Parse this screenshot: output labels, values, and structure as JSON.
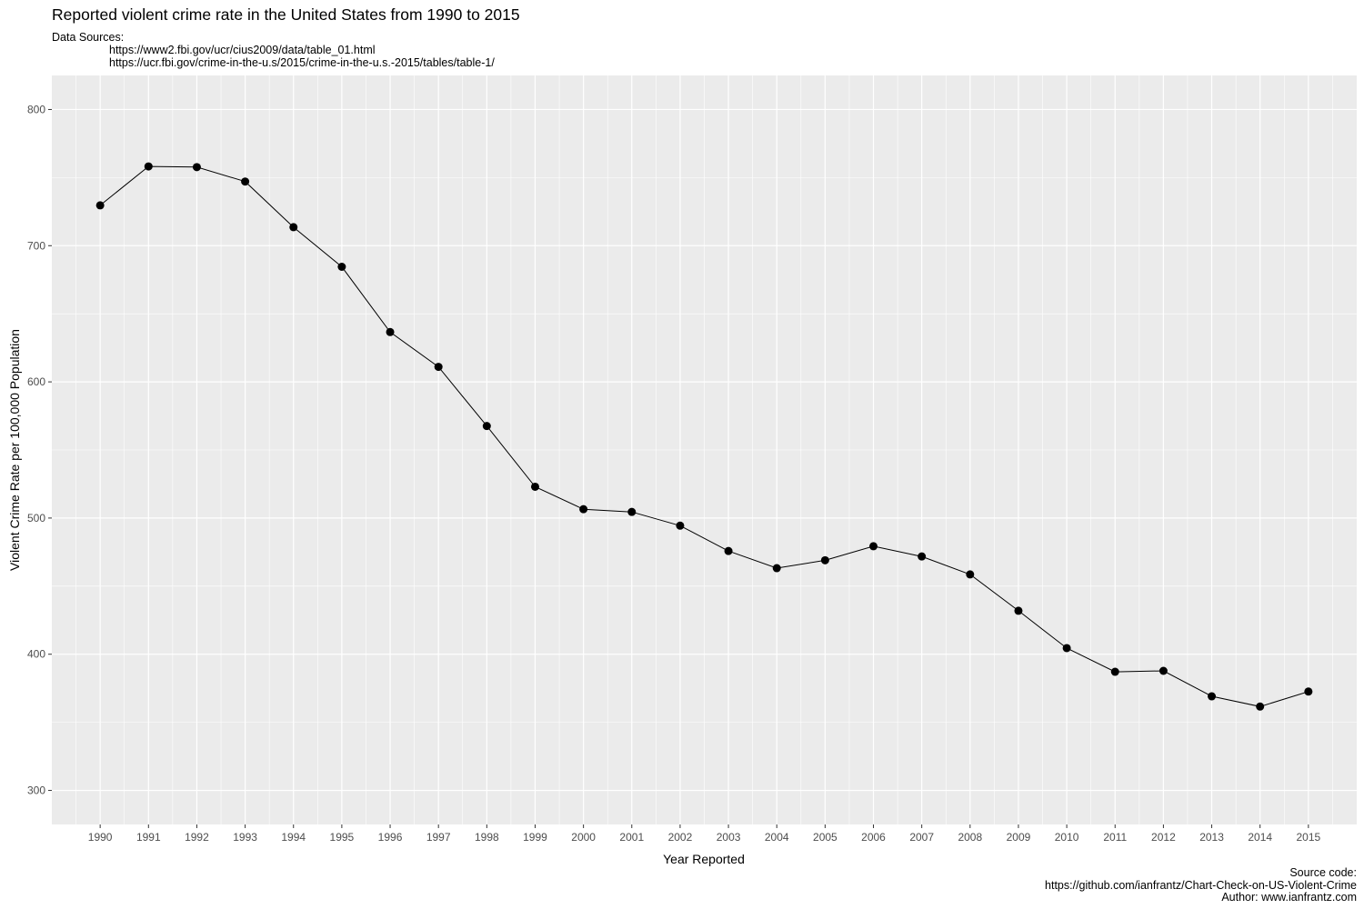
{
  "title": "Reported violent crime rate in the United States from 1990 to 2015",
  "subtitle": {
    "label": "Data Sources:",
    "sources": [
      "https://www2.fbi.gov/ucr/cius2009/data/table_01.html",
      "https://ucr.fbi.gov/crime-in-the-u.s/2015/crime-in-the-u.s.-2015/tables/table-1/"
    ]
  },
  "caption": {
    "line1": "Source code:",
    "line2": "https://github.com/ianfrantz/Chart-Check-on-US-Violent-Crime",
    "line3": "Author: www.ianfrantz.com"
  },
  "colors": {
    "panel": "#ebebeb",
    "grid": "#ffffff",
    "line": "#000000",
    "point": "#000000",
    "tick_text": "#4d4d4d"
  },
  "chart_data": {
    "type": "line",
    "title": "Reported violent crime rate in the United States from 1990 to 2015",
    "xlabel": "Year Reported",
    "ylabel": "Violent Crime Rate per 100,000 Population",
    "x": [
      1990,
      1991,
      1992,
      1993,
      1994,
      1995,
      1996,
      1997,
      1998,
      1999,
      2000,
      2001,
      2002,
      2003,
      2004,
      2005,
      2006,
      2007,
      2008,
      2009,
      2010,
      2011,
      2012,
      2013,
      2014,
      2015
    ],
    "y": [
      729.6,
      758.2,
      757.7,
      747.1,
      713.6,
      684.5,
      636.6,
      611.0,
      567.6,
      523.0,
      506.5,
      504.5,
      494.4,
      475.8,
      463.2,
      469.0,
      479.3,
      471.8,
      458.6,
      431.9,
      404.5,
      387.1,
      387.8,
      369.1,
      361.6,
      372.6
    ],
    "xticks": [
      "1990",
      "1991",
      "1992",
      "1993",
      "1994",
      "1995",
      "1996",
      "1997",
      "1998",
      "1999",
      "2000",
      "2001",
      "2002",
      "2003",
      "2004",
      "2005",
      "2006",
      "2007",
      "2008",
      "2009",
      "2010",
      "2011",
      "2012",
      "2013",
      "2014",
      "2015"
    ],
    "yticks": [
      300,
      400,
      500,
      600,
      700,
      800
    ],
    "ylim": [
      275,
      825
    ],
    "xlim": [
      1989.0,
      2016.0
    ],
    "grid": true,
    "legend": "none",
    "markers": true
  }
}
